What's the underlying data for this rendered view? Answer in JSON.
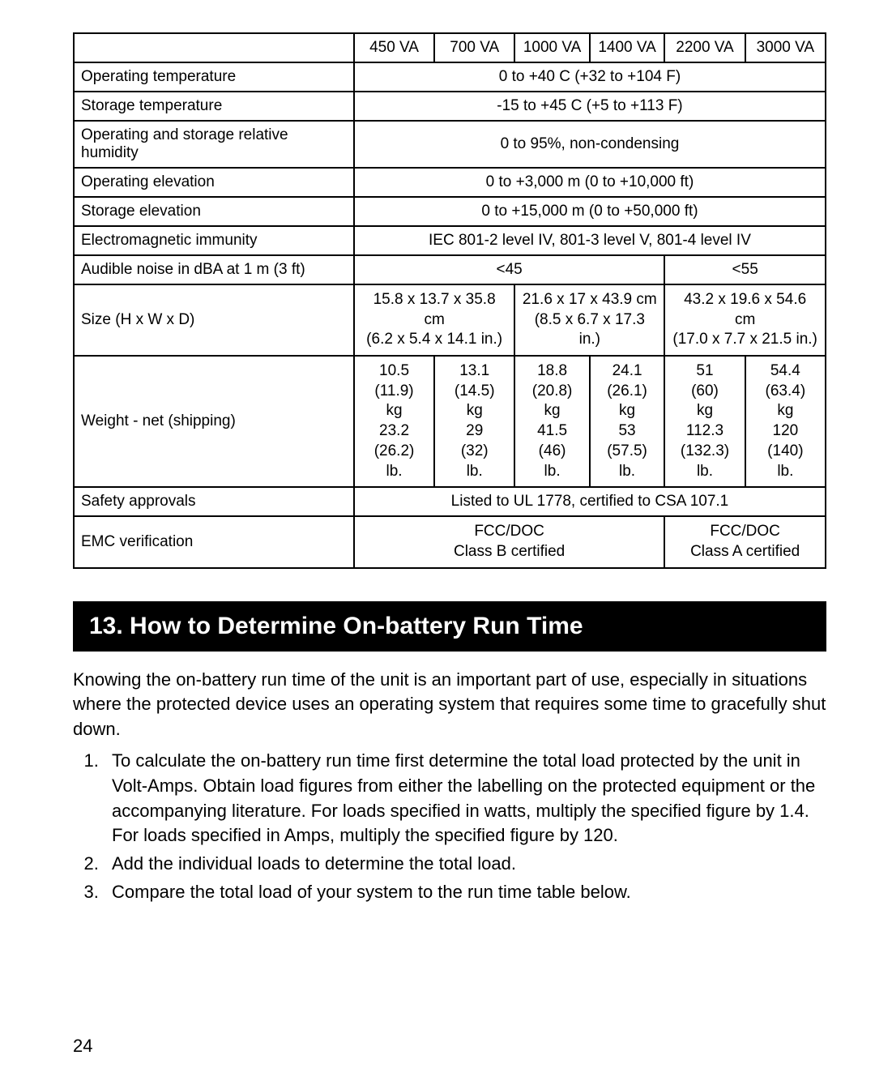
{
  "spec_table": {
    "col_headers": [
      "450 VA",
      "700 VA",
      "1000 VA",
      "1400 VA",
      "2200 VA",
      "3000 VA"
    ],
    "rows": {
      "operating_temp": {
        "label": "Operating temperature",
        "value": "0 to +40  C  (+32 to +104  F)"
      },
      "storage_temp": {
        "label": "Storage temperature",
        "value": "-15 to +45  C  (+5 to +113  F)"
      },
      "humidity": {
        "label": "Operating and storage relative humidity",
        "value": "0 to 95%, non-condensing"
      },
      "op_elevation": {
        "label": "Operating elevation",
        "value": "0 to +3,000 m (0 to +10,000 ft)"
      },
      "st_elevation": {
        "label": "Storage elevation",
        "value": "0 to +15,000 m (0 to +50,000 ft)"
      },
      "emi": {
        "label": "Electromagnetic immunity",
        "value": "IEC 801-2 level IV, 801-3 level V, 801-4 level IV"
      },
      "audible": {
        "label": "Audible noise in dBA at 1 m (3 ft)",
        "v1": "<45",
        "v2": "<55"
      },
      "size": {
        "label": "Size (H x W x D)",
        "c1": "15.8 x 13.7 x 35.8 cm\n(6.2 x 5.4 x 14.1 in.)",
        "c2": "21.6 x 17 x 43.9 cm\n(8.5 x 6.7 x 17.3 in.)",
        "c3": "43.2 x 19.6 x 54.6 cm\n(17.0 x 7.7 x 21.5 in.)"
      },
      "weight": {
        "label": "Weight - net (shipping)",
        "w1": "10.5\n(11.9)\nkg\n23.2\n(26.2)\nlb.",
        "w2": "13.1\n(14.5)\nkg\n29\n(32)\nlb.",
        "w3": "18.8\n(20.8)\nkg\n41.5\n(46)\nlb.",
        "w4": "24.1\n(26.1)\nkg\n53\n(57.5)\nlb.",
        "w5": "51\n(60)\nkg\n112.3\n(132.3)\nlb.",
        "w6": "54.4\n(63.4)\nkg\n120\n(140)\nlb."
      },
      "safety": {
        "label": "Safety approvals",
        "value": "Listed to UL 1778, certified to CSA 107.1"
      },
      "emc": {
        "label": "EMC verification",
        "v1": "FCC/DOC\nClass B certified",
        "v2": "FCC/DOC\nClass A certified"
      }
    }
  },
  "section": {
    "title": "13. How to Determine On-battery Run Time",
    "para": "Knowing the on-battery run time of the unit is an important part of use, especially in situations where the protected device uses an operating system that requires some time to gracefully shut down.",
    "li1": "To calculate the on-battery run time first determine the total load protected by the unit in Volt-Amps. Obtain load figures from either the labelling on the protected equipment or the accompanying literature. For loads specified in watts, multiply the specified figure by 1.4. For loads specified in Amps, multiply the specified figure by 120.",
    "li2": "Add the individual loads to determine the total load.",
    "li3": "Compare the total load of your system to the run time table below."
  },
  "page": "24"
}
